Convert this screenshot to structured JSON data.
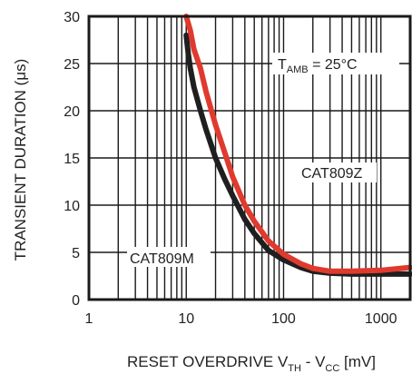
{
  "chart_data": {
    "type": "line",
    "xscale": "log",
    "xlim": [
      1,
      2000
    ],
    "ylim": [
      0,
      30
    ],
    "xticks": [
      1,
      10,
      100,
      1000
    ],
    "xtick_labels": [
      "1",
      "10",
      "100",
      "1000"
    ],
    "yticks": [
      0,
      5,
      10,
      15,
      20,
      25,
      30
    ],
    "ytick_labels": [
      "0",
      "5",
      "10",
      "15",
      "20",
      "25",
      "30"
    ],
    "grid": true,
    "ylabel": "TRANSIENT DURATION (μs)",
    "xlabel": {
      "parts": [
        "RESET OVERDRIVE V",
        "TH",
        " - V",
        "CC",
        " [mV]"
      ]
    },
    "annotation": {
      "parts": [
        "T",
        "AMB",
        " = 25°C"
      ]
    },
    "series": [
      {
        "name": "CAT809Z",
        "color": "#e03a2f",
        "x": [
          10,
          11,
          12,
          14,
          16,
          20,
          25,
          30,
          40,
          50,
          70,
          100,
          150,
          200,
          300,
          500,
          1000,
          2000
        ],
        "y": [
          30,
          28.5,
          26.5,
          24.5,
          22,
          18.5,
          15.5,
          13,
          10,
          8.3,
          6.2,
          4.8,
          3.8,
          3.3,
          3.0,
          3.0,
          3.1,
          3.4
        ]
      },
      {
        "name": "CAT809M",
        "color": "#1f1f1f",
        "x": [
          10,
          10.5,
          11,
          12,
          14,
          16,
          20,
          25,
          30,
          40,
          50,
          70,
          100,
          150,
          200,
          300,
          500,
          1000,
          2000
        ],
        "y": [
          28,
          26,
          24.5,
          22.5,
          20,
          18,
          15,
          12.7,
          11,
          8.5,
          7,
          5.2,
          4.2,
          3.4,
          3.0,
          2.8,
          2.7,
          2.7,
          2.7
        ]
      }
    ]
  }
}
